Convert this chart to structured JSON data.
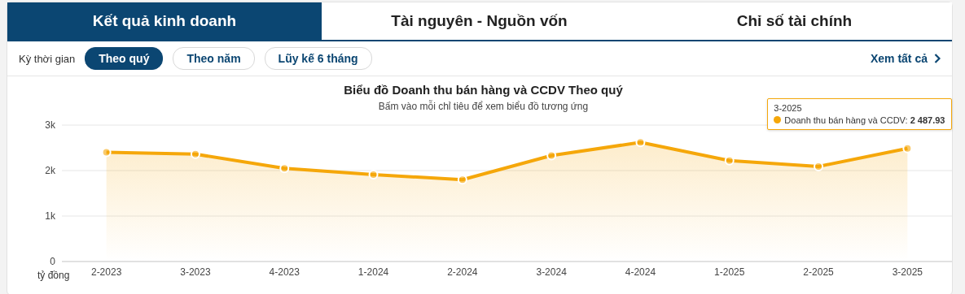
{
  "chart_data": {
    "type": "area",
    "title": "Biểu đồ Doanh thu bán hàng và CCDV Theo quý",
    "subtitle": "Bấm vào mỗi chỉ tiêu để xem biểu đồ tương ứng",
    "ylabel": "tỷ đồng",
    "annotations": [
      "Kết quả kinh doanh",
      "Tài nguyên - Nguồn vốn",
      "Chỉ số tài chính",
      "Kỳ thời gian",
      "Theo quý",
      "Theo năm",
      "Lũy kế 6 tháng",
      "Xem tất cả",
      ":"
    ],
    "categories": [
      "2-2023",
      "3-2023",
      "4-2023",
      "1-2024",
      "2-2024",
      "3-2024",
      "4-2024",
      "1-2025",
      "2-2025",
      "3-2025"
    ],
    "series": [
      {
        "name": "Doanh thu bán hàng và CCDV",
        "color": "#f5a70a",
        "values": [
          2400,
          2360,
          2050,
          1910,
          1800,
          2330,
          2620,
          2220,
          2090,
          2487.93
        ],
        "value_labels": [
          null,
          null,
          null,
          null,
          null,
          null,
          null,
          null,
          null,
          "2 487.93"
        ]
      }
    ],
    "ylim": [
      0,
      3000
    ],
    "yticks": [
      {
        "value": 0,
        "label": "0"
      },
      {
        "value": 1000,
        "label": "1k"
      },
      {
        "value": 2000,
        "label": "2k"
      },
      {
        "value": 3000,
        "label": "3k"
      }
    ],
    "grid": "y",
    "legend": "top right",
    "marker": "circle",
    "line_style": "solid"
  }
}
